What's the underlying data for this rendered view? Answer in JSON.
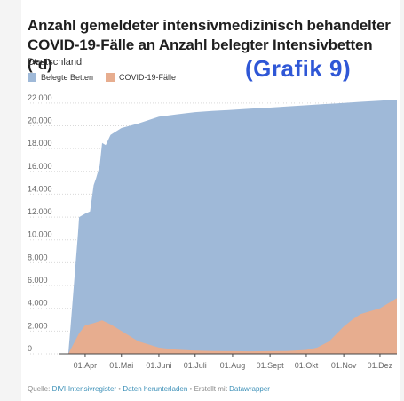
{
  "header": {
    "title": "Anzahl gemeldeter intensivmedizinisch behandelter COVID-19-Fälle an Anzahl belegter Intensivbetten (*d)",
    "subtitle": "Deutschland",
    "badge": "(Grafik 9)"
  },
  "footer": {
    "source_prefix": "Quelle:",
    "source_link": "DIVI-Intensivregister",
    "sep1": "•",
    "download_link": "Daten herunterladen",
    "sep2": "•",
    "created_prefix": "Erstellt mit",
    "tool_link": "Datawrapper"
  },
  "colors": {
    "beds": "#9fb9d8",
    "covid": "#e7ad8f",
    "grid": "#d9d9d9",
    "axis_text": "#666666"
  },
  "chart_data": {
    "type": "area",
    "title": "Anzahl gemeldeter intensivmedizinisch behandelter COVID-19-Fälle an Anzahl belegter Intensivbetten (*d)",
    "subtitle": "Deutschland",
    "x_ticks": [
      "01.Apr",
      "01.Mai",
      "01.Juni",
      "01.Juli",
      "01.Aug",
      "01.Sept",
      "01.Okt",
      "01.Nov",
      "01.Dez"
    ],
    "x_tick_dates": [
      "2020-04-01",
      "2020-05-01",
      "2020-06-01",
      "2020-07-01",
      "2020-08-01",
      "2020-09-01",
      "2020-10-01",
      "2020-11-01",
      "2020-12-01"
    ],
    "x_range": [
      "2020-03-10",
      "2020-12-15"
    ],
    "ylim": [
      0,
      23000
    ],
    "y_ticks": [
      0,
      2000,
      4000,
      6000,
      8000,
      10000,
      12000,
      14000,
      16000,
      18000,
      20000,
      22000
    ],
    "y_tick_labels": [
      "0",
      "2.000",
      "4.000",
      "6.000",
      "8.000",
      "10.000",
      "12.000",
      "14.000",
      "16.000",
      "18.000",
      "20.000",
      "22.000"
    ],
    "grid": true,
    "legend_position": "top-left",
    "series": [
      {
        "name": "Belegte Betten",
        "color": "#9fb9d8",
        "points": [
          [
            "2020-03-10",
            0
          ],
          [
            "2020-03-18",
            0
          ],
          [
            "2020-03-20",
            2500
          ],
          [
            "2020-03-23",
            6500
          ],
          [
            "2020-03-26",
            10500
          ],
          [
            "2020-03-27",
            12000
          ],
          [
            "2020-04-01",
            12300
          ],
          [
            "2020-04-05",
            12500
          ],
          [
            "2020-04-08",
            14800
          ],
          [
            "2020-04-10",
            15400
          ],
          [
            "2020-04-13",
            16500
          ],
          [
            "2020-04-15",
            18500
          ],
          [
            "2020-04-18",
            18300
          ],
          [
            "2020-04-22",
            19200
          ],
          [
            "2020-05-01",
            19800
          ],
          [
            "2020-05-15",
            20200
          ],
          [
            "2020-06-01",
            20800
          ],
          [
            "2020-06-15",
            21000
          ],
          [
            "2020-07-01",
            21200
          ],
          [
            "2020-07-15",
            21300
          ],
          [
            "2020-08-01",
            21400
          ],
          [
            "2020-08-15",
            21500
          ],
          [
            "2020-09-01",
            21600
          ],
          [
            "2020-09-15",
            21700
          ],
          [
            "2020-10-01",
            21800
          ],
          [
            "2020-10-15",
            21900
          ],
          [
            "2020-11-01",
            22000
          ],
          [
            "2020-11-15",
            22100
          ],
          [
            "2020-12-01",
            22200
          ],
          [
            "2020-12-15",
            22300
          ]
        ]
      },
      {
        "name": "COVID-19-Fälle",
        "color": "#e7ad8f",
        "points": [
          [
            "2020-03-10",
            0
          ],
          [
            "2020-03-18",
            0
          ],
          [
            "2020-03-22",
            800
          ],
          [
            "2020-03-27",
            1800
          ],
          [
            "2020-04-01",
            2500
          ],
          [
            "2020-04-08",
            2700
          ],
          [
            "2020-04-15",
            2950
          ],
          [
            "2020-04-22",
            2600
          ],
          [
            "2020-05-01",
            2000
          ],
          [
            "2020-05-15",
            1100
          ],
          [
            "2020-06-01",
            550
          ],
          [
            "2020-06-15",
            380
          ],
          [
            "2020-07-01",
            300
          ],
          [
            "2020-07-15",
            260
          ],
          [
            "2020-08-01",
            240
          ],
          [
            "2020-08-15",
            230
          ],
          [
            "2020-09-01",
            240
          ],
          [
            "2020-09-15",
            260
          ],
          [
            "2020-10-01",
            350
          ],
          [
            "2020-10-10",
            550
          ],
          [
            "2020-10-20",
            1100
          ],
          [
            "2020-11-01",
            2400
          ],
          [
            "2020-11-08",
            3000
          ],
          [
            "2020-11-15",
            3500
          ],
          [
            "2020-12-01",
            4000
          ],
          [
            "2020-12-15",
            4900
          ]
        ]
      }
    ]
  }
}
